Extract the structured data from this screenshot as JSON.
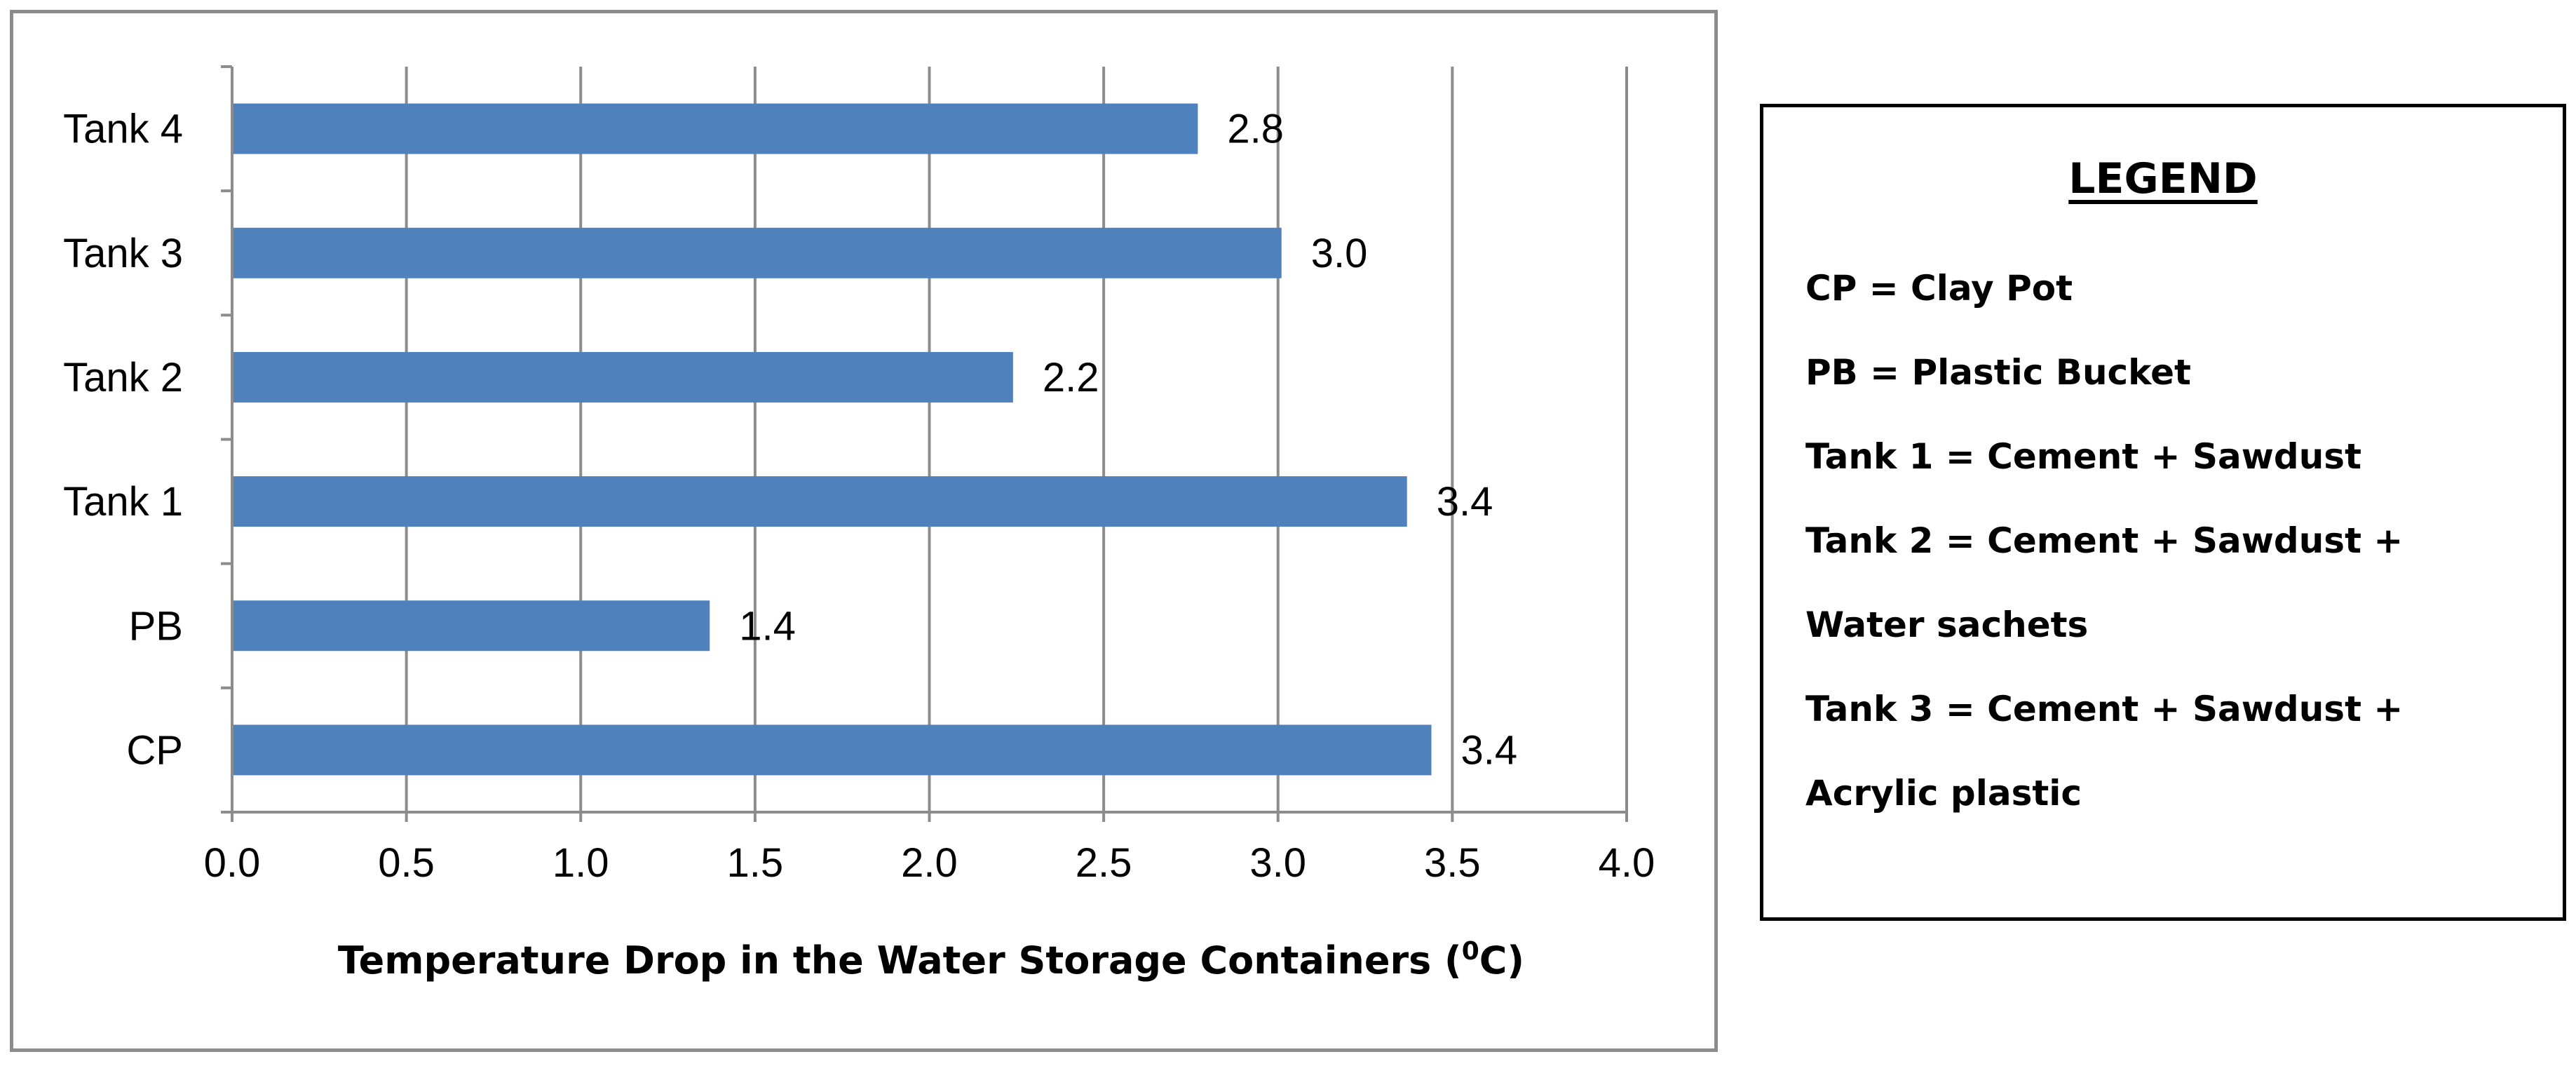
{
  "chart_data": {
    "type": "bar",
    "orientation": "horizontal",
    "categories": [
      "CP",
      "PB",
      "Tank 1",
      "Tank 2",
      "Tank 3",
      "Tank 4"
    ],
    "values": [
      3.44,
      1.37,
      3.37,
      2.24,
      3.01,
      2.77
    ],
    "data_labels": [
      "3.4",
      "1.4",
      "3.4",
      "2.2",
      "3.0",
      "2.8"
    ],
    "xlabel_main": "Temperature Drop in the Water Storage Containers (",
    "xlabel_sup": "0",
    "xlabel_end": "C)",
    "ylabel": "",
    "xlim": [
      0,
      4
    ],
    "x_ticks": [
      "0.0",
      "0.5",
      "1.0",
      "1.5",
      "2.0",
      "2.5",
      "3.0",
      "3.5",
      "4.0"
    ],
    "grid": "vertical",
    "bar_color": "#4f81bd",
    "grid_color": "#8c8c8c"
  },
  "legend": {
    "title": "LEGEND",
    "entries": [
      "CP = Clay Pot",
      "PB = Plastic Bucket",
      "Tank 1 = Cement + Sawdust",
      "Tank 2 = Cement + Sawdust + Water sachets",
      "Tank 3 = Cement + Sawdust + Acrylic plastic"
    ]
  }
}
